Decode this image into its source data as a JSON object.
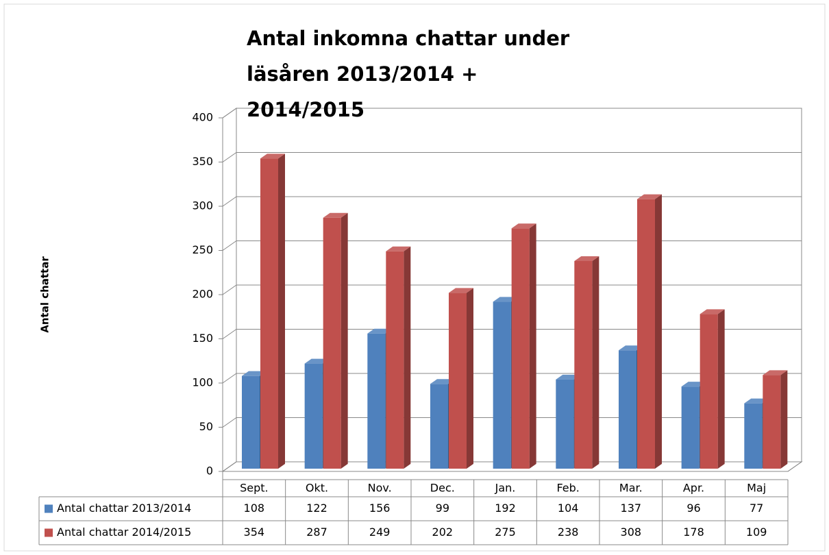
{
  "chart_data": {
    "type": "bar3d",
    "title": "Antal inkomna chattar under läsåren 2013/2014 + 2014/2015",
    "y_label": "Antal chattar",
    "categories": [
      "Sept.",
      "Okt.",
      "Nov.",
      "Dec.",
      "Jan.",
      "Feb.",
      "Mar.",
      "Apr.",
      "Maj"
    ],
    "series": [
      {
        "name": "Antal chattar 2013/2014",
        "color": "#4f81bd",
        "values": [
          108,
          122,
          156,
          99,
          192,
          104,
          137,
          96,
          77
        ]
      },
      {
        "name": "Antal chattar 2014/2015",
        "color": "#c0504d",
        "values": [
          354,
          287,
          249,
          202,
          275,
          238,
          308,
          178,
          109
        ]
      }
    ],
    "ylim": [
      0,
      400
    ],
    "yticks": [
      0,
      50,
      100,
      150,
      200,
      250,
      300,
      350,
      400
    ],
    "grid": true,
    "data_table": true
  }
}
